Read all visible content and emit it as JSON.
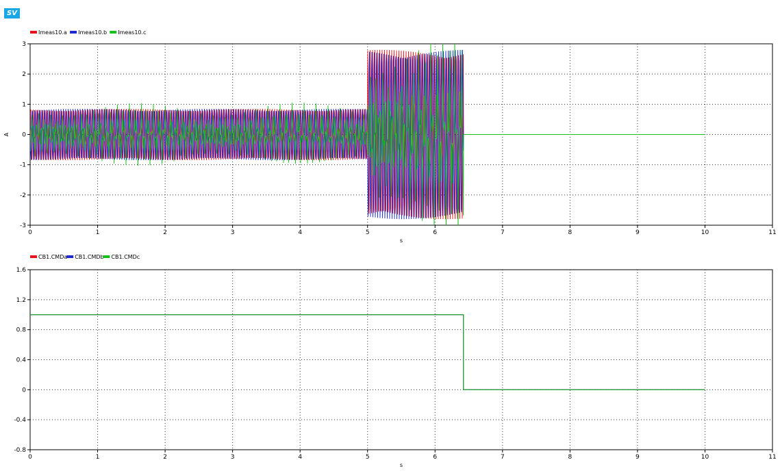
{
  "app": {
    "badge": "SV"
  },
  "chart_data": [
    {
      "type": "line",
      "xlabel": "s",
      "ylabel": "A",
      "xlim": [
        0,
        11
      ],
      "ylim": [
        -3,
        3
      ],
      "x_ticks": [
        0,
        1,
        2,
        3,
        4,
        5,
        6,
        7,
        8,
        9,
        10,
        11
      ],
      "y_ticks": [
        -3,
        -2,
        -1,
        0,
        1,
        2,
        3
      ],
      "grid": true,
      "legend_position": "top-left",
      "series": [
        {
          "name": "Imeas10.a",
          "color": "#e8141c",
          "amplitude_segments": [
            {
              "t0": 0,
              "t1": 5,
              "amp": 0.85
            },
            {
              "t0": 5,
              "t1": 6.42,
              "amp": 2.8
            },
            {
              "t0": 6.42,
              "t1": 10,
              "amp": 0
            }
          ]
        },
        {
          "name": "Imeas10.b",
          "color": "#1d2ad2",
          "amplitude_segments": [
            {
              "t0": 0,
              "t1": 5,
              "amp": 0.85
            },
            {
              "t0": 5,
              "t1": 6.42,
              "amp": 2.8
            },
            {
              "t0": 6.42,
              "t1": 10,
              "amp": 0
            }
          ]
        },
        {
          "name": "Imeas10.c",
          "color": "#16c11c",
          "amplitude_segments": [
            {
              "t0": 0,
              "t1": 5,
              "amp": 0.85
            },
            {
              "t0": 5,
              "t1": 6.42,
              "amp": 2.8
            },
            {
              "t0": 6.42,
              "t1": 10,
              "amp": 0
            }
          ]
        }
      ]
    },
    {
      "type": "line",
      "xlabel": "s",
      "ylabel": "",
      "xlim": [
        0,
        11
      ],
      "ylim": [
        -0.8,
        1.6
      ],
      "x_ticks": [
        0,
        1,
        2,
        3,
        4,
        5,
        6,
        7,
        8,
        9,
        10,
        11
      ],
      "y_ticks": [
        -0.8,
        -0.4,
        0,
        0.4,
        0.8,
        1.2,
        1.6
      ],
      "grid": true,
      "legend_position": "top-left",
      "series": [
        {
          "name": "CB1.CMDa",
          "color": "#e8141c",
          "x": [
            0,
            6.42,
            6.42,
            10
          ],
          "y": [
            1,
            1,
            0,
            0
          ]
        },
        {
          "name": "CB1.CMDb",
          "color": "#1d2ad2",
          "x": [
            0,
            6.42,
            6.42,
            10
          ],
          "y": [
            1,
            1,
            0,
            0
          ]
        },
        {
          "name": "CB1.CMDc",
          "color": "#16c11c",
          "x": [
            0,
            6.42,
            6.42,
            10
          ],
          "y": [
            1,
            1,
            0,
            0
          ]
        }
      ]
    }
  ]
}
